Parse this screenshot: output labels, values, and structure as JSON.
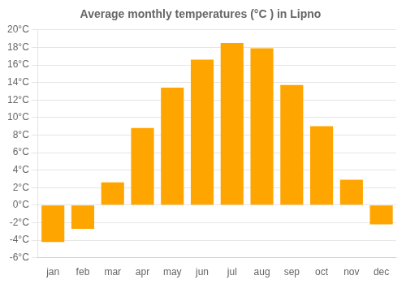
{
  "chart_data": {
    "type": "bar",
    "title": "Average monthly temperatures (°C ) in Lipno",
    "categories": [
      "jan",
      "feb",
      "mar",
      "apr",
      "may",
      "jun",
      "jul",
      "aug",
      "sep",
      "oct",
      "nov",
      "dec"
    ],
    "values": [
      -4.2,
      -2.7,
      2.6,
      8.8,
      13.4,
      16.6,
      18.5,
      17.9,
      13.7,
      9.0,
      2.9,
      -2.2
    ],
    "color": "#FFA500",
    "ylim": [
      -6,
      20
    ],
    "yticks": [
      {
        "value": -6,
        "label": "-6°C"
      },
      {
        "value": -4,
        "label": "-4°C"
      },
      {
        "value": -2,
        "label": "-2°C"
      },
      {
        "value": 0,
        "label": "0°C"
      },
      {
        "value": 2,
        "label": "2°C"
      },
      {
        "value": 4,
        "label": "4°C"
      },
      {
        "value": 6,
        "label": "6°C"
      },
      {
        "value": 8,
        "label": "8°C"
      },
      {
        "value": 10,
        "label": "10°C"
      },
      {
        "value": 12,
        "label": "12°C"
      },
      {
        "value": 14,
        "label": "14°C"
      },
      {
        "value": 16,
        "label": "16°C"
      },
      {
        "value": 18,
        "label": "18°C"
      },
      {
        "value": 20,
        "label": "20°C"
      }
    ],
    "grid": true
  }
}
